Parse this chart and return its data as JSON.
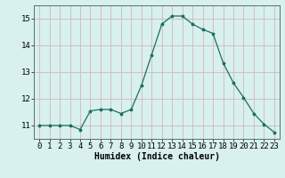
{
  "x": [
    0,
    1,
    2,
    3,
    4,
    5,
    6,
    7,
    8,
    9,
    10,
    11,
    12,
    13,
    14,
    15,
    16,
    17,
    18,
    19,
    20,
    21,
    22,
    23
  ],
  "y": [
    11.0,
    11.0,
    11.0,
    11.0,
    10.85,
    11.55,
    11.6,
    11.6,
    11.45,
    11.6,
    12.5,
    13.65,
    14.8,
    15.1,
    15.1,
    14.8,
    14.6,
    14.45,
    13.35,
    12.6,
    12.05,
    11.45,
    11.05,
    10.75
  ],
  "line_color": "#1a7060",
  "marker": "*",
  "marker_size": 2.5,
  "bg_color": "#d8f0ee",
  "grid_color": "#d0b8b8",
  "xlabel": "Humidex (Indice chaleur)",
  "xlim": [
    -0.5,
    23.5
  ],
  "ylim": [
    10.5,
    15.5
  ],
  "yticks": [
    11,
    12,
    13,
    14,
    15
  ],
  "xticks": [
    0,
    1,
    2,
    3,
    4,
    5,
    6,
    7,
    8,
    9,
    10,
    11,
    12,
    13,
    14,
    15,
    16,
    17,
    18,
    19,
    20,
    21,
    22,
    23
  ],
  "label_fontsize": 7,
  "tick_fontsize": 6.5
}
